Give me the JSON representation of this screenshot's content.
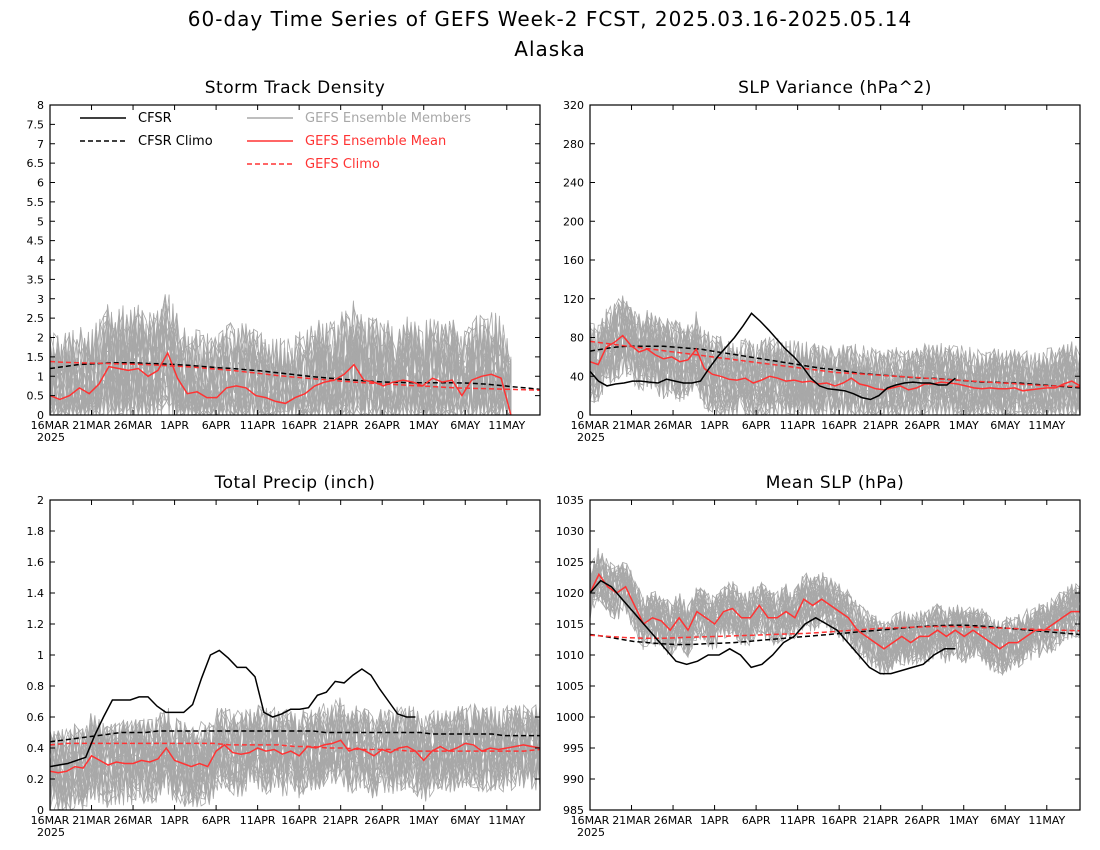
{
  "figure": {
    "title_line1": "60-day Time Series of GEFS Week-2 FCST, 2025.03.16-2025.05.14",
    "title_line2": "Alaska"
  },
  "colors": {
    "cfsr": "#000000",
    "members": "#a8a8a8",
    "ensemble_mean": "#ff3333",
    "gefs_climo": "#ff3333"
  },
  "x_tick_labels": [
    "16MAR",
    "21MAR",
    "26MAR",
    "1APR",
    "6APR",
    "11APR",
    "16APR",
    "21APR",
    "26APR",
    "1MAY",
    "6MAY",
    "11MAY"
  ],
  "x_year_label": "2025",
  "legend": {
    "cfsr": "CFSR",
    "cfsr_climo": "CFSR Climo",
    "members": "GEFS Ensemble Members",
    "mean": "GEFS Ensemble Mean",
    "gefs_climo": "GEFS Climo"
  },
  "chart_data": [
    {
      "type": "line",
      "title": "Storm Track Density",
      "x_day_index": [
        0,
        5,
        10,
        15,
        20,
        25,
        30,
        35,
        40,
        45,
        50,
        55
      ],
      "ylim": [
        0,
        8
      ],
      "y_ticks": [
        "0",
        "0.5",
        "1",
        "1.5",
        "2",
        "2.5",
        "3",
        "3.5",
        "4",
        "4.5",
        "5",
        "5.5",
        "6",
        "6.5",
        "7",
        "7.5",
        "8"
      ],
      "series": [
        {
          "name": "CFSR",
          "values": []
        },
        {
          "name": "CFSR Climo",
          "values": [
            1.2,
            1.25,
            1.3,
            1.32,
            1.34,
            1.35,
            1.35,
            1.33,
            1.32,
            1.3,
            1.28,
            1.25,
            1.22,
            1.2,
            1.17,
            1.14,
            1.1,
            1.06,
            1.02,
            0.98,
            0.95,
            0.92,
            0.89,
            0.87,
            0.85,
            0.84,
            0.83,
            0.83,
            0.83,
            0.83,
            0.82,
            0.8,
            0.77,
            0.73,
            0.7,
            0.66
          ]
        },
        {
          "name": "GEFS Ensemble Mean",
          "values": [
            0.5,
            0.4,
            0.5,
            0.7,
            0.55,
            0.8,
            1.25,
            1.2,
            1.15,
            1.2,
            1.0,
            1.15,
            1.6,
            0.95,
            0.55,
            0.6,
            0.45,
            0.45,
            0.7,
            0.75,
            0.7,
            0.5,
            0.45,
            0.35,
            0.3,
            0.45,
            0.55,
            0.75,
            0.85,
            0.9,
            1.05,
            1.3,
            0.9,
            0.85,
            0.75,
            0.85,
            0.9,
            0.85,
            0.75,
            0.95,
            0.85,
            0.9,
            0.5,
            0.9,
            1.0,
            1.05,
            0.95,
            0.0
          ]
        },
        {
          "name": "GEFS Climo",
          "values": [
            1.38,
            1.36,
            1.35,
            1.34,
            1.33,
            1.32,
            1.31,
            1.3,
            1.28,
            1.26,
            1.24,
            1.21,
            1.18,
            1.15,
            1.11,
            1.07,
            1.03,
            0.99,
            0.96,
            0.93,
            0.9,
            0.87,
            0.84,
            0.82,
            0.8,
            0.78,
            0.76,
            0.74,
            0.72,
            0.7,
            0.69,
            0.68,
            0.67,
            0.66,
            0.65,
            0.64
          ]
        }
      ]
    },
    {
      "type": "line",
      "title": "SLP Variance (hPa^2)",
      "x_day_index": [
        0,
        5,
        10,
        15,
        20,
        25,
        30,
        35,
        40,
        45,
        50,
        55
      ],
      "ylim": [
        0,
        320
      ],
      "y_ticks": [
        "0",
        "40",
        "80",
        "120",
        "160",
        "200",
        "240",
        "280",
        "320"
      ],
      "series": [
        {
          "name": "CFSR",
          "values": [
            45,
            35,
            30,
            32,
            33,
            35,
            35,
            34,
            33,
            37,
            35,
            33,
            33,
            35,
            48,
            60,
            70,
            80,
            92,
            105,
            97,
            88,
            78,
            68,
            60,
            50,
            38,
            30,
            27,
            26,
            25,
            22,
            18,
            16,
            20,
            28,
            31,
            33,
            34,
            33,
            33,
            31,
            31,
            38
          ]
        },
        {
          "name": "CFSR Climo",
          "values": [
            66,
            68,
            70,
            71,
            71,
            71,
            71,
            70,
            69,
            68,
            66,
            64,
            62,
            60,
            58,
            56,
            54,
            52,
            50,
            48,
            47,
            45,
            43,
            42,
            41,
            40,
            39,
            38,
            38,
            37,
            36,
            35,
            34,
            34,
            33,
            33,
            32,
            31,
            30,
            29,
            28
          ]
        },
        {
          "name": "GEFS Ensemble Mean",
          "values": [
            55,
            52,
            70,
            75,
            82,
            72,
            65,
            68,
            62,
            58,
            60,
            55,
            57,
            68,
            48,
            42,
            40,
            37,
            36,
            38,
            33,
            36,
            40,
            38,
            35,
            36,
            34,
            35,
            32,
            33,
            30,
            33,
            38,
            32,
            30,
            27,
            26,
            28,
            30,
            26,
            28,
            32,
            32,
            34,
            33,
            32,
            30,
            28,
            27,
            28,
            27,
            27,
            28,
            25,
            26,
            27,
            28,
            28,
            32,
            35,
            30
          ]
        },
        {
          "name": "GEFS Climo",
          "values": [
            76,
            74,
            72,
            70,
            68,
            66,
            64,
            62,
            60,
            58,
            56,
            54,
            52,
            50,
            48,
            46,
            44,
            43,
            42,
            41,
            40,
            39,
            38,
            37,
            36,
            35,
            34,
            33,
            32,
            31,
            30,
            30,
            29
          ]
        }
      ]
    },
    {
      "type": "line",
      "title": "Total Precip (inch)",
      "x_day_index": [
        0,
        5,
        10,
        15,
        20,
        25,
        30,
        35,
        40,
        45,
        50,
        55
      ],
      "ylim": [
        0,
        2
      ],
      "y_ticks": [
        "0",
        "0.2",
        "0.4",
        "0.6",
        "0.8",
        "1",
        "1.2",
        "1.4",
        "1.6",
        "1.8",
        "2"
      ],
      "series": [
        {
          "name": "CFSR",
          "values": [
            0.28,
            0.29,
            0.3,
            0.32,
            0.34,
            0.48,
            0.6,
            0.71,
            0.71,
            0.71,
            0.73,
            0.73,
            0.67,
            0.63,
            0.63,
            0.63,
            0.68,
            0.85,
            1.0,
            1.03,
            0.98,
            0.92,
            0.92,
            0.86,
            0.63,
            0.6,
            0.62,
            0.65,
            0.65,
            0.66,
            0.74,
            0.76,
            0.83,
            0.82,
            0.87,
            0.91,
            0.87,
            0.78,
            0.7,
            0.62,
            0.6,
            0.6
          ]
        },
        {
          "name": "CFSR Climo",
          "values": [
            0.44,
            0.45,
            0.46,
            0.47,
            0.48,
            0.49,
            0.5,
            0.5,
            0.5,
            0.51,
            0.51,
            0.51,
            0.51,
            0.51,
            0.51,
            0.51,
            0.51,
            0.51,
            0.51,
            0.51,
            0.51,
            0.51,
            0.51,
            0.5,
            0.5,
            0.5,
            0.5,
            0.5,
            0.5,
            0.5,
            0.5,
            0.5,
            0.49,
            0.49,
            0.49,
            0.49,
            0.49,
            0.49,
            0.48,
            0.48,
            0.48,
            0.48
          ]
        },
        {
          "name": "GEFS Ensemble Mean",
          "values": [
            0.25,
            0.24,
            0.25,
            0.28,
            0.27,
            0.35,
            0.32,
            0.29,
            0.31,
            0.3,
            0.3,
            0.32,
            0.31,
            0.33,
            0.4,
            0.32,
            0.3,
            0.28,
            0.3,
            0.28,
            0.38,
            0.42,
            0.37,
            0.36,
            0.37,
            0.4,
            0.38,
            0.39,
            0.36,
            0.38,
            0.35,
            0.41,
            0.4,
            0.42,
            0.43,
            0.45,
            0.38,
            0.4,
            0.38,
            0.35,
            0.39,
            0.37,
            0.4,
            0.41,
            0.38,
            0.32,
            0.38,
            0.41,
            0.38,
            0.4,
            0.43,
            0.42,
            0.38,
            0.4,
            0.39,
            0.4,
            0.41,
            0.42,
            0.41,
            0.4
          ]
        },
        {
          "name": "GEFS Climo",
          "values": [
            0.42,
            0.43,
            0.43,
            0.43,
            0.43,
            0.43,
            0.43,
            0.43,
            0.43,
            0.43,
            0.43,
            0.42,
            0.42,
            0.42,
            0.42,
            0.41,
            0.41,
            0.4,
            0.4,
            0.39,
            0.39,
            0.39,
            0.38,
            0.38,
            0.38,
            0.38,
            0.38,
            0.38,
            0.38,
            0.38,
            0.39
          ]
        }
      ]
    },
    {
      "type": "line",
      "title": "Mean SLP (hPa)",
      "x_day_index": [
        0,
        5,
        10,
        15,
        20,
        25,
        30,
        35,
        40,
        45,
        50,
        55
      ],
      "ylim": [
        985,
        1035
      ],
      "y_ticks": [
        "985",
        "990",
        "995",
        "1000",
        "1005",
        "1010",
        "1015",
        "1020",
        "1025",
        "1030",
        "1035"
      ],
      "series": [
        {
          "name": "CFSR",
          "values": [
            1020,
            1022,
            1021,
            1019,
            1017,
            1015,
            1013,
            1011,
            1009,
            1008.5,
            1009,
            1010,
            1010,
            1011,
            1010,
            1008,
            1008.5,
            1010,
            1012,
            1013,
            1015,
            1016,
            1015,
            1014,
            1012,
            1010,
            1008,
            1007,
            1007,
            1007.5,
            1008,
            1008.5,
            1010,
            1011,
            1011
          ]
        },
        {
          "name": "CFSR Climo",
          "values": [
            1013.3,
            1013,
            1012.6,
            1012.2,
            1012,
            1011.8,
            1011.7,
            1011.7,
            1011.8,
            1011.9,
            1012,
            1012.2,
            1012.4,
            1012.6,
            1012.8,
            1013,
            1013.2,
            1013.4,
            1013.6,
            1013.8,
            1014,
            1014.2,
            1014.4,
            1014.6,
            1014.7,
            1014.8,
            1014.8,
            1014.7,
            1014.5,
            1014.3,
            1014.1,
            1013.9,
            1013.7,
            1013.5,
            1013.3
          ]
        },
        {
          "name": "GEFS Ensemble Mean",
          "values": [
            1020,
            1023,
            1021,
            1020,
            1021,
            1018,
            1015,
            1016,
            1015.5,
            1014,
            1016,
            1014,
            1017,
            1016,
            1015,
            1017,
            1017.5,
            1016,
            1016,
            1018,
            1016,
            1016,
            1017,
            1016,
            1019,
            1018,
            1019,
            1018,
            1017,
            1016,
            1014,
            1013,
            1012,
            1011,
            1012,
            1013,
            1012,
            1013,
            1013,
            1014,
            1013,
            1014,
            1013,
            1014,
            1013,
            1012,
            1011,
            1012,
            1012,
            1013,
            1014,
            1014,
            1015,
            1016,
            1017,
            1017
          ]
        },
        {
          "name": "GEFS Climo",
          "values": [
            1013.2,
            1013,
            1012.8,
            1012.7,
            1012.7,
            1012.8,
            1012.9,
            1013,
            1013.1,
            1013.2,
            1013.3,
            1013.4,
            1013.5,
            1013.7,
            1013.9,
            1014.1,
            1014.3,
            1014.4,
            1014.5,
            1014.6,
            1014.6,
            1014.5,
            1014.4,
            1014.3,
            1014.2,
            1014.1,
            1014,
            1013.9
          ]
        }
      ]
    }
  ]
}
